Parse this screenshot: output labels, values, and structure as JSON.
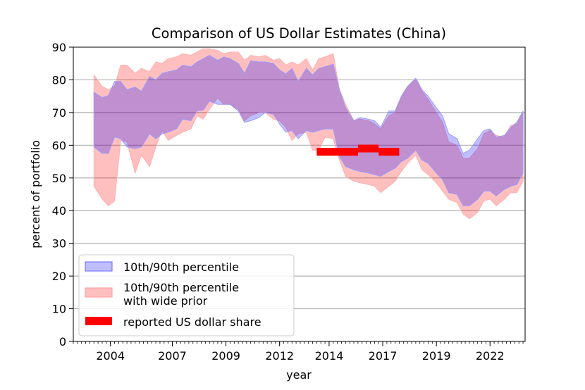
{
  "chart_data": {
    "type": "area",
    "title": "Comparison of US Dollar Estimates (China)",
    "xlabel": "year",
    "ylabel": "percent of portfolio",
    "xlim": [
      2002.2,
      2024.1
    ],
    "ylim": [
      0,
      90
    ],
    "x_ticks": [
      {
        "value": 2004,
        "label": "2004"
      },
      {
        "value": 2007,
        "label": "2007"
      },
      {
        "value": 2009.6,
        "label": "2009"
      },
      {
        "value": 2012.2,
        "label": "2012"
      },
      {
        "value": 2014.6,
        "label": "2014"
      },
      {
        "value": 2017.2,
        "label": "2017"
      },
      {
        "value": 2019.8,
        "label": "2019"
      },
      {
        "value": 2022.4,
        "label": "2022"
      }
    ],
    "y_ticks": [
      0,
      10,
      20,
      30,
      40,
      50,
      60,
      70,
      80,
      90
    ],
    "grid": "horizontal",
    "legend_position": "lower-left",
    "series": [
      {
        "name": "10th/90th percentile",
        "kind": "band",
        "color": "#0000ff",
        "points": [
          [
            2003.2,
            59.5,
            76.2
          ],
          [
            2003.6,
            57.5,
            74.6
          ],
          [
            2003.9,
            57.5,
            75.2
          ],
          [
            2004.2,
            62.5,
            79.5
          ],
          [
            2004.5,
            62.0,
            79.5
          ],
          [
            2004.8,
            59.5,
            77.0
          ],
          [
            2005.2,
            59.0,
            77.8
          ],
          [
            2005.5,
            59.5,
            76.5
          ],
          [
            2005.9,
            63.5,
            81.0
          ],
          [
            2006.2,
            62.0,
            80.0
          ],
          [
            2006.5,
            63.5,
            82.0
          ],
          [
            2006.8,
            64.0,
            82.5
          ],
          [
            2007.2,
            65.0,
            83.0
          ],
          [
            2007.5,
            68.0,
            84.5
          ],
          [
            2007.9,
            67.5,
            84.0
          ],
          [
            2008.2,
            70.5,
            85.5
          ],
          [
            2008.5,
            70.8,
            86.5
          ],
          [
            2008.8,
            73.5,
            87.5
          ],
          [
            2009.2,
            72.5,
            86.0
          ],
          [
            2009.5,
            72.5,
            87.0
          ],
          [
            2009.8,
            72.5,
            86.5
          ],
          [
            2010.2,
            70.5,
            85.0
          ],
          [
            2010.5,
            67.0,
            82.0
          ],
          [
            2010.8,
            67.5,
            85.8
          ],
          [
            2011.2,
            68.5,
            85.5
          ],
          [
            2011.5,
            70.0,
            85.5
          ],
          [
            2011.9,
            69.5,
            85.0
          ],
          [
            2012.2,
            66.5,
            83.0
          ],
          [
            2012.5,
            64.0,
            81.8
          ],
          [
            2012.8,
            64.5,
            83.5
          ],
          [
            2013.1,
            62.0,
            79.5
          ],
          [
            2013.5,
            64.5,
            83.5
          ],
          [
            2013.8,
            64.0,
            81.5
          ],
          [
            2014.1,
            64.5,
            83.5
          ],
          [
            2014.4,
            65.0,
            84.0
          ],
          [
            2014.8,
            65.0,
            84.8
          ],
          [
            2015.1,
            56.5,
            77.0
          ],
          [
            2015.4,
            53.5,
            71.5
          ],
          [
            2015.8,
            52.5,
            67.5
          ],
          [
            2016.1,
            52.0,
            68.5
          ],
          [
            2016.5,
            51.5,
            68.0
          ],
          [
            2016.8,
            51.0,
            67.5
          ],
          [
            2017.1,
            50.5,
            65.5
          ],
          [
            2017.5,
            52.0,
            70.5
          ],
          [
            2017.8,
            53.0,
            70.5
          ],
          [
            2018.1,
            55.0,
            75.0
          ],
          [
            2018.4,
            56.0,
            78.0
          ],
          [
            2018.8,
            58.5,
            80.5
          ],
          [
            2019.1,
            55.5,
            77.0
          ],
          [
            2019.4,
            54.5,
            75.0
          ],
          [
            2019.8,
            51.5,
            71.5
          ],
          [
            2020.1,
            49.5,
            69.0
          ],
          [
            2020.4,
            45.5,
            63.5
          ],
          [
            2020.8,
            45.0,
            62.0
          ],
          [
            2021.1,
            41.5,
            57.5
          ],
          [
            2021.4,
            41.5,
            58.5
          ],
          [
            2021.8,
            43.5,
            62.0
          ],
          [
            2022.1,
            46.0,
            64.5
          ],
          [
            2022.4,
            46.0,
            65.0
          ],
          [
            2022.7,
            44.5,
            62.5
          ],
          [
            2023.1,
            46.5,
            63.0
          ],
          [
            2023.4,
            47.5,
            65.5
          ],
          [
            2023.7,
            48.0,
            67.0
          ],
          [
            2024.0,
            51.5,
            70.5
          ]
        ]
      },
      {
        "name": "10th/90th percentile with wide prior",
        "kind": "band",
        "color": "#ff0000",
        "points": [
          [
            2003.2,
            47.5,
            81.5
          ],
          [
            2003.6,
            43.5,
            78.0
          ],
          [
            2003.9,
            41.5,
            77.0
          ],
          [
            2004.2,
            43.0,
            78.0
          ],
          [
            2004.5,
            61.5,
            84.5
          ],
          [
            2004.8,
            61.0,
            84.5
          ],
          [
            2005.2,
            51.5,
            82.0
          ],
          [
            2005.5,
            57.0,
            83.5
          ],
          [
            2005.9,
            53.5,
            82.5
          ],
          [
            2006.2,
            59.5,
            85.5
          ],
          [
            2006.5,
            64.5,
            85.0
          ],
          [
            2006.8,
            61.5,
            86.5
          ],
          [
            2007.2,
            63.0,
            87.0
          ],
          [
            2007.5,
            64.0,
            88.0
          ],
          [
            2007.9,
            65.0,
            87.5
          ],
          [
            2008.2,
            69.0,
            88.5
          ],
          [
            2008.5,
            68.0,
            89.5
          ],
          [
            2008.8,
            71.0,
            89.5
          ],
          [
            2009.2,
            74.5,
            89.0
          ],
          [
            2009.5,
            72.5,
            88.0
          ],
          [
            2009.8,
            72.5,
            88.5
          ],
          [
            2010.2,
            71.0,
            88.5
          ],
          [
            2010.5,
            67.5,
            86.0
          ],
          [
            2010.8,
            69.0,
            87.5
          ],
          [
            2011.2,
            70.0,
            87.0
          ],
          [
            2011.5,
            70.0,
            87.5
          ],
          [
            2011.9,
            68.0,
            86.0
          ],
          [
            2012.2,
            67.5,
            86.5
          ],
          [
            2012.5,
            65.5,
            84.5
          ],
          [
            2012.8,
            61.5,
            85.5
          ],
          [
            2013.1,
            63.5,
            84.5
          ],
          [
            2013.5,
            64.0,
            86.5
          ],
          [
            2013.8,
            58.5,
            83.0
          ],
          [
            2014.1,
            58.5,
            86.5
          ],
          [
            2014.4,
            62.5,
            87.0
          ],
          [
            2014.8,
            62.0,
            88.0
          ],
          [
            2015.1,
            55.5,
            77.0
          ],
          [
            2015.4,
            50.5,
            72.5
          ],
          [
            2015.8,
            49.0,
            67.5
          ],
          [
            2016.1,
            48.5,
            68.0
          ],
          [
            2016.5,
            48.0,
            67.5
          ],
          [
            2016.8,
            47.5,
            66.5
          ],
          [
            2017.1,
            45.5,
            65.0
          ],
          [
            2017.5,
            47.5,
            69.0
          ],
          [
            2017.8,
            49.0,
            70.0
          ],
          [
            2018.1,
            52.0,
            74.5
          ],
          [
            2018.4,
            54.5,
            78.0
          ],
          [
            2018.8,
            57.0,
            80.0
          ],
          [
            2019.1,
            52.5,
            76.5
          ],
          [
            2019.4,
            51.0,
            74.0
          ],
          [
            2019.8,
            48.5,
            70.0
          ],
          [
            2020.1,
            46.0,
            67.0
          ],
          [
            2020.4,
            43.5,
            61.0
          ],
          [
            2020.8,
            42.5,
            60.0
          ],
          [
            2021.1,
            39.0,
            56.0
          ],
          [
            2021.4,
            37.5,
            56.0
          ],
          [
            2021.8,
            39.5,
            59.0
          ],
          [
            2022.1,
            43.0,
            63.5
          ],
          [
            2022.4,
            43.5,
            64.5
          ],
          [
            2022.7,
            41.5,
            63.0
          ],
          [
            2023.1,
            43.5,
            62.5
          ],
          [
            2023.4,
            45.5,
            66.0
          ],
          [
            2023.7,
            45.5,
            66.5
          ],
          [
            2024.0,
            49.0,
            70.0
          ]
        ]
      },
      {
        "name": "reported US dollar share",
        "kind": "segments",
        "color": "#ff0000",
        "segments": [
          {
            "x_start": 2014.0,
            "x_end": 2016.0,
            "y": 58.0
          },
          {
            "x_start": 2016.0,
            "x_end": 2017.0,
            "y": 59.0
          },
          {
            "x_start": 2017.0,
            "x_end": 2018.0,
            "y": 58.0
          }
        ]
      }
    ]
  }
}
